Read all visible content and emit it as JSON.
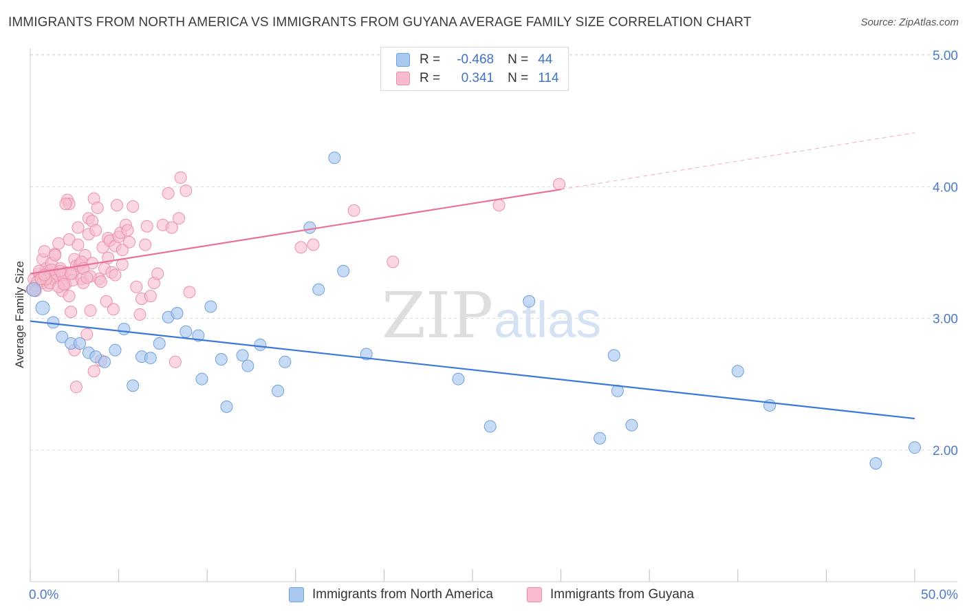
{
  "title": "IMMIGRANTS FROM NORTH AMERICA VS IMMIGRANTS FROM GUYANA AVERAGE FAMILY SIZE CORRELATION CHART",
  "source": "Source: ZipAtlas.com",
  "watermark": {
    "zip": "ZIP",
    "atlas": "atlas"
  },
  "legend": {
    "rows": [
      {
        "r_label": "R =",
        "r_value": "-0.468",
        "n_label": "N =",
        "n_value": "44",
        "color": "#a9c8f0",
        "border": "#6f9fdc"
      },
      {
        "r_label": "R =",
        "r_value": "0.341",
        "n_label": "N =",
        "n_value": "114",
        "color": "#f6bccd",
        "border": "#ec8fab"
      }
    ]
  },
  "bottom_legend": [
    {
      "label": "Immigrants from North America",
      "color": "#a9c8f0",
      "border": "#6f9fdc"
    },
    {
      "label": "Immigrants from Guyana",
      "color": "#f6bccd",
      "border": "#ec8fab"
    }
  ],
  "chart_data": {
    "type": "scatter",
    "ylabel": "Average Family Size",
    "x_tick_labels": [
      "0.0%",
      "50.0%"
    ],
    "y_tick_labels": [
      "2.00",
      "3.00",
      "4.00",
      "5.00"
    ],
    "y_ticks": [
      2,
      3,
      4,
      5
    ],
    "xlim": [
      0,
      50
    ],
    "ylim": [
      1.1,
      5.1
    ],
    "grid": true,
    "colors": {
      "north_america": "#3b78d8",
      "guyana": "#e8719a"
    },
    "series": [
      {
        "name": "Immigrants from North America",
        "color": "#a9c8f0",
        "trend": {
          "x": [
            0,
            50
          ],
          "y": [
            2.98,
            2.24
          ],
          "color": "#3b78d8"
        },
        "points": [
          [
            0.2,
            3.22
          ],
          [
            0.7,
            3.08
          ],
          [
            1.3,
            2.97
          ],
          [
            1.8,
            2.86
          ],
          [
            2.3,
            2.81
          ],
          [
            2.8,
            2.81
          ],
          [
            3.3,
            2.74
          ],
          [
            3.7,
            2.71
          ],
          [
            4.2,
            2.67
          ],
          [
            4.8,
            2.76
          ],
          [
            5.3,
            2.92
          ],
          [
            5.8,
            2.49
          ],
          [
            6.3,
            2.71
          ],
          [
            6.8,
            2.7
          ],
          [
            7.3,
            2.81
          ],
          [
            7.8,
            3.01
          ],
          [
            8.3,
            3.04
          ],
          [
            8.8,
            2.9
          ],
          [
            9.5,
            2.87
          ],
          [
            9.7,
            2.54
          ],
          [
            10.2,
            3.09
          ],
          [
            10.8,
            2.69
          ],
          [
            11.1,
            2.33
          ],
          [
            12.0,
            2.72
          ],
          [
            12.3,
            2.64
          ],
          [
            13.0,
            2.8
          ],
          [
            14.0,
            2.45
          ],
          [
            14.4,
            2.67
          ],
          [
            15.8,
            3.69
          ],
          [
            16.3,
            3.22
          ],
          [
            17.2,
            4.22
          ],
          [
            17.7,
            3.36
          ],
          [
            19.0,
            2.73
          ],
          [
            24.2,
            2.54
          ],
          [
            26.0,
            2.18
          ],
          [
            28.2,
            3.13
          ],
          [
            32.2,
            2.09
          ],
          [
            33.0,
            2.72
          ],
          [
            33.2,
            2.45
          ],
          [
            34.0,
            2.19
          ],
          [
            40.0,
            2.6
          ],
          [
            41.8,
            2.34
          ],
          [
            47.8,
            1.9
          ],
          [
            50.0,
            2.02
          ]
        ]
      },
      {
        "name": "Immigrants from Guyana",
        "color": "#f6bccd",
        "trend": {
          "x": [
            0,
            30
          ],
          "y": [
            3.34,
            3.98
          ],
          "dash_to": [
            50,
            4.41
          ],
          "color": "#e8719a"
        },
        "points": [
          [
            0.1,
            3.22
          ],
          [
            0.2,
            3.3
          ],
          [
            0.3,
            3.25
          ],
          [
            0.4,
            3.28
          ],
          [
            0.5,
            3.34
          ],
          [
            0.6,
            3.31
          ],
          [
            0.7,
            3.45
          ],
          [
            0.7,
            3.27
          ],
          [
            0.8,
            3.51
          ],
          [
            0.9,
            3.38
          ],
          [
            1.0,
            3.36
          ],
          [
            1.0,
            3.25
          ],
          [
            1.1,
            3.33
          ],
          [
            1.2,
            3.42
          ],
          [
            1.3,
            3.3
          ],
          [
            1.4,
            3.49
          ],
          [
            1.5,
            3.34
          ],
          [
            1.5,
            3.31
          ],
          [
            1.6,
            3.57
          ],
          [
            1.7,
            3.38
          ],
          [
            1.8,
            3.21
          ],
          [
            1.9,
            3.3
          ],
          [
            2.0,
            3.35
          ],
          [
            2.0,
            3.26
          ],
          [
            2.1,
            3.9
          ],
          [
            2.2,
            3.87
          ],
          [
            2.2,
            3.6
          ],
          [
            2.3,
            3.05
          ],
          [
            2.4,
            3.34
          ],
          [
            2.4,
            3.29
          ],
          [
            2.5,
            2.76
          ],
          [
            2.5,
            3.45
          ],
          [
            2.6,
            3.4
          ],
          [
            2.7,
            3.69
          ],
          [
            2.7,
            3.56
          ],
          [
            2.8,
            3.41
          ],
          [
            2.9,
            3.3
          ],
          [
            3.0,
            3.38
          ],
          [
            3.0,
            3.27
          ],
          [
            3.1,
            3.48
          ],
          [
            3.2,
            2.88
          ],
          [
            3.3,
            3.76
          ],
          [
            3.3,
            3.64
          ],
          [
            3.4,
            3.06
          ],
          [
            3.5,
            3.74
          ],
          [
            3.5,
            3.42
          ],
          [
            3.6,
            3.91
          ],
          [
            3.7,
            3.67
          ],
          [
            3.8,
            3.84
          ],
          [
            3.9,
            3.3
          ],
          [
            4.0,
            2.68
          ],
          [
            4.1,
            3.54
          ],
          [
            4.2,
            3.38
          ],
          [
            4.3,
            3.13
          ],
          [
            4.4,
            3.61
          ],
          [
            4.5,
            3.59
          ],
          [
            4.6,
            3.35
          ],
          [
            4.7,
            3.07
          ],
          [
            4.8,
            3.55
          ],
          [
            4.9,
            3.86
          ],
          [
            5.0,
            3.62
          ],
          [
            5.1,
            3.65
          ],
          [
            5.2,
            3.41
          ],
          [
            5.4,
            3.71
          ],
          [
            5.5,
            3.67
          ],
          [
            5.6,
            3.58
          ],
          [
            5.8,
            3.85
          ],
          [
            6.0,
            3.24
          ],
          [
            6.2,
            3.03
          ],
          [
            6.3,
            3.15
          ],
          [
            6.5,
            3.56
          ],
          [
            6.6,
            3.7
          ],
          [
            6.8,
            3.17
          ],
          [
            7.0,
            3.27
          ],
          [
            7.2,
            3.34
          ],
          [
            7.5,
            3.71
          ],
          [
            7.8,
            3.95
          ],
          [
            8.0,
            3.69
          ],
          [
            8.2,
            2.67
          ],
          [
            8.4,
            3.76
          ],
          [
            8.5,
            4.07
          ],
          [
            8.8,
            3.97
          ],
          [
            9.0,
            3.2
          ],
          [
            1.2,
            3.37
          ],
          [
            2.0,
            3.87
          ],
          [
            3.6,
            2.6
          ],
          [
            2.6,
            2.48
          ],
          [
            1.4,
            3.48
          ],
          [
            1.8,
            3.33
          ],
          [
            4.4,
            3.46
          ],
          [
            2.2,
            3.17
          ],
          [
            5.2,
            3.52
          ],
          [
            1.1,
            3.27
          ],
          [
            0.9,
            3.3
          ],
          [
            3.4,
            3.32
          ],
          [
            2.9,
            3.43
          ],
          [
            1.6,
            3.24
          ],
          [
            0.5,
            3.36
          ],
          [
            0.6,
            3.3
          ],
          [
            3.0,
            3.38
          ],
          [
            1.7,
            3.36
          ],
          [
            2.3,
            3.34
          ],
          [
            1.9,
            3.26
          ],
          [
            4.8,
            3.33
          ],
          [
            15.3,
            3.54
          ],
          [
            16.0,
            3.56
          ],
          [
            18.3,
            3.82
          ],
          [
            20.5,
            3.43
          ],
          [
            26.5,
            3.86
          ],
          [
            29.9,
            4.02
          ],
          [
            3.2,
            3.31
          ],
          [
            4.0,
            3.28
          ],
          [
            0.3,
            3.21
          ],
          [
            0.8,
            3.33
          ]
        ]
      }
    ]
  }
}
